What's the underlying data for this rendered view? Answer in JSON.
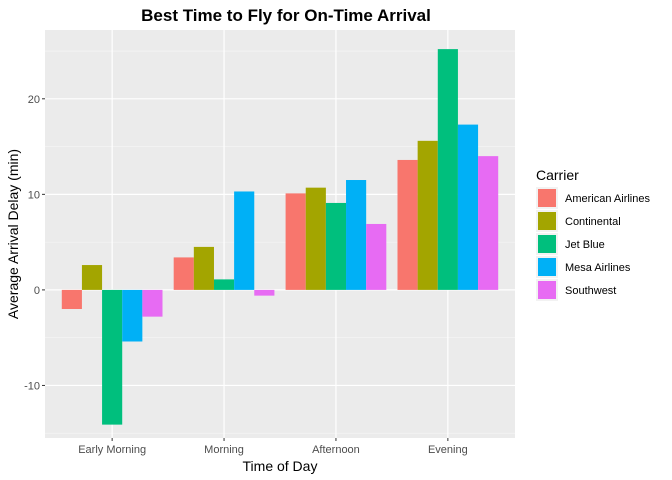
{
  "chart_data": {
    "type": "bar",
    "title": "Best Time to Fly for On-Time Arrival",
    "xlabel": "Time of Day",
    "ylabel": "Average Arrival Delay (min)",
    "categories": [
      "Early Morning",
      "Morning",
      "Afternoon",
      "Evening"
    ],
    "ylim": [
      -15.5,
      27.2
    ],
    "y_ticks": [
      -10,
      0,
      10,
      20
    ],
    "legend": {
      "title": "Carrier",
      "placement": "right"
    },
    "grid": true,
    "series": [
      {
        "name": "American Airlines",
        "color": "#F8766D",
        "values": [
          -2.0,
          3.4,
          10.1,
          13.6
        ]
      },
      {
        "name": "Continental",
        "color": "#A3A500",
        "values": [
          2.6,
          4.5,
          10.7,
          15.6
        ]
      },
      {
        "name": "Jet Blue",
        "color": "#00BF7D",
        "values": [
          -14.1,
          1.1,
          9.1,
          25.2
        ]
      },
      {
        "name": "Mesa Airlines",
        "color": "#00B0F6",
        "values": [
          -5.4,
          10.3,
          11.5,
          17.3
        ]
      },
      {
        "name": "Southwest",
        "color": "#E76BF3",
        "values": [
          -2.8,
          -0.6,
          6.9,
          14.0
        ]
      }
    ]
  }
}
